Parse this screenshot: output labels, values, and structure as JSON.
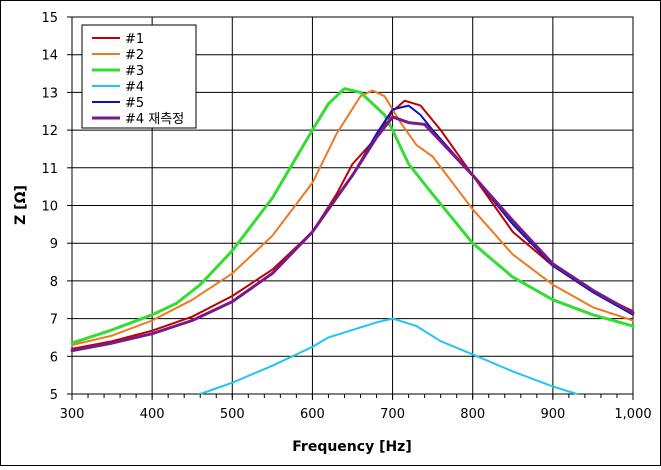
{
  "chart_data": {
    "type": "line",
    "title": "",
    "xlabel": "Frequency [Hz]",
    "ylabel": "Z [Ω]",
    "xlim": [
      300,
      1000
    ],
    "ylim": [
      5,
      15
    ],
    "grid": true,
    "legend_position": "top-left inside",
    "x_ticks": [
      300,
      400,
      500,
      600,
      700,
      800,
      900,
      1000
    ],
    "x_tick_labels": [
      "300",
      "400",
      "500",
      "600",
      "700",
      "800",
      "900",
      "1,000"
    ],
    "y_ticks": [
      5,
      6,
      7,
      8,
      9,
      10,
      11,
      12,
      13,
      14,
      15
    ],
    "y_tick_labels": [
      "5",
      "6",
      "7",
      "8",
      "9",
      "10",
      "11",
      "12",
      "13",
      "14",
      "15"
    ],
    "series": [
      {
        "name": "#1",
        "color": "#c00000",
        "points": [
          [
            300,
            6.2
          ],
          [
            350,
            6.4
          ],
          [
            400,
            6.68
          ],
          [
            450,
            7.05
          ],
          [
            500,
            7.6
          ],
          [
            550,
            8.3
          ],
          [
            600,
            9.3
          ],
          [
            630,
            10.3
          ],
          [
            650,
            11.1
          ],
          [
            680,
            11.8
          ],
          [
            700,
            12.5
          ],
          [
            715,
            12.78
          ],
          [
            735,
            12.65
          ],
          [
            760,
            12.0
          ],
          [
            800,
            10.8
          ],
          [
            850,
            9.3
          ],
          [
            900,
            8.4
          ],
          [
            950,
            7.7
          ],
          [
            1000,
            7.2
          ]
        ]
      },
      {
        "name": "#2",
        "color": "#f07820",
        "points": [
          [
            300,
            6.3
          ],
          [
            350,
            6.55
          ],
          [
            400,
            6.95
          ],
          [
            450,
            7.5
          ],
          [
            500,
            8.2
          ],
          [
            550,
            9.2
          ],
          [
            600,
            10.6
          ],
          [
            630,
            11.9
          ],
          [
            660,
            12.9
          ],
          [
            675,
            13.05
          ],
          [
            690,
            12.9
          ],
          [
            710,
            12.2
          ],
          [
            730,
            11.6
          ],
          [
            750,
            11.3
          ],
          [
            800,
            9.9
          ],
          [
            850,
            8.7
          ],
          [
            900,
            7.9
          ],
          [
            950,
            7.3
          ],
          [
            1000,
            6.95
          ]
        ]
      },
      {
        "name": "#3",
        "color": "#33dd33",
        "points": [
          [
            300,
            6.35
          ],
          [
            350,
            6.7
          ],
          [
            400,
            7.1
          ],
          [
            430,
            7.4
          ],
          [
            460,
            7.9
          ],
          [
            500,
            8.8
          ],
          [
            550,
            10.2
          ],
          [
            600,
            12.0
          ],
          [
            620,
            12.7
          ],
          [
            640,
            13.1
          ],
          [
            660,
            13.0
          ],
          [
            690,
            12.4
          ],
          [
            700,
            12.0
          ],
          [
            720,
            11.1
          ],
          [
            750,
            10.3
          ],
          [
            800,
            9.0
          ],
          [
            850,
            8.1
          ],
          [
            900,
            7.5
          ],
          [
            950,
            7.1
          ],
          [
            1000,
            6.8
          ]
        ]
      },
      {
        "name": "#4",
        "color": "#22c4f4",
        "points": [
          [
            460,
            5.0
          ],
          [
            500,
            5.3
          ],
          [
            550,
            5.75
          ],
          [
            600,
            6.25
          ],
          [
            620,
            6.5
          ],
          [
            650,
            6.7
          ],
          [
            680,
            6.9
          ],
          [
            700,
            7.0
          ],
          [
            730,
            6.8
          ],
          [
            760,
            6.4
          ],
          [
            800,
            6.05
          ],
          [
            850,
            5.6
          ],
          [
            900,
            5.2
          ],
          [
            930,
            5.0
          ]
        ]
      },
      {
        "name": "#5",
        "color": "#1010c0",
        "points": [
          [
            300,
            6.15
          ],
          [
            350,
            6.35
          ],
          [
            400,
            6.6
          ],
          [
            450,
            6.95
          ],
          [
            500,
            7.45
          ],
          [
            550,
            8.2
          ],
          [
            600,
            9.3
          ],
          [
            650,
            10.8
          ],
          [
            680,
            11.9
          ],
          [
            700,
            12.55
          ],
          [
            720,
            12.65
          ],
          [
            735,
            12.4
          ],
          [
            750,
            12.0
          ],
          [
            800,
            10.8
          ],
          [
            850,
            9.5
          ],
          [
            900,
            8.4
          ],
          [
            950,
            7.7
          ],
          [
            1000,
            7.1
          ]
        ]
      },
      {
        "name": "#4 재측정",
        "color": "#7a1a8a",
        "points": [
          [
            300,
            6.15
          ],
          [
            350,
            6.35
          ],
          [
            400,
            6.6
          ],
          [
            450,
            6.95
          ],
          [
            500,
            7.45
          ],
          [
            550,
            8.2
          ],
          [
            600,
            9.3
          ],
          [
            650,
            10.8
          ],
          [
            680,
            11.8
          ],
          [
            700,
            12.35
          ],
          [
            720,
            12.2
          ],
          [
            740,
            12.15
          ],
          [
            760,
            11.7
          ],
          [
            800,
            10.8
          ],
          [
            850,
            9.6
          ],
          [
            900,
            8.45
          ],
          [
            950,
            7.75
          ],
          [
            1000,
            7.15
          ]
        ]
      }
    ]
  }
}
